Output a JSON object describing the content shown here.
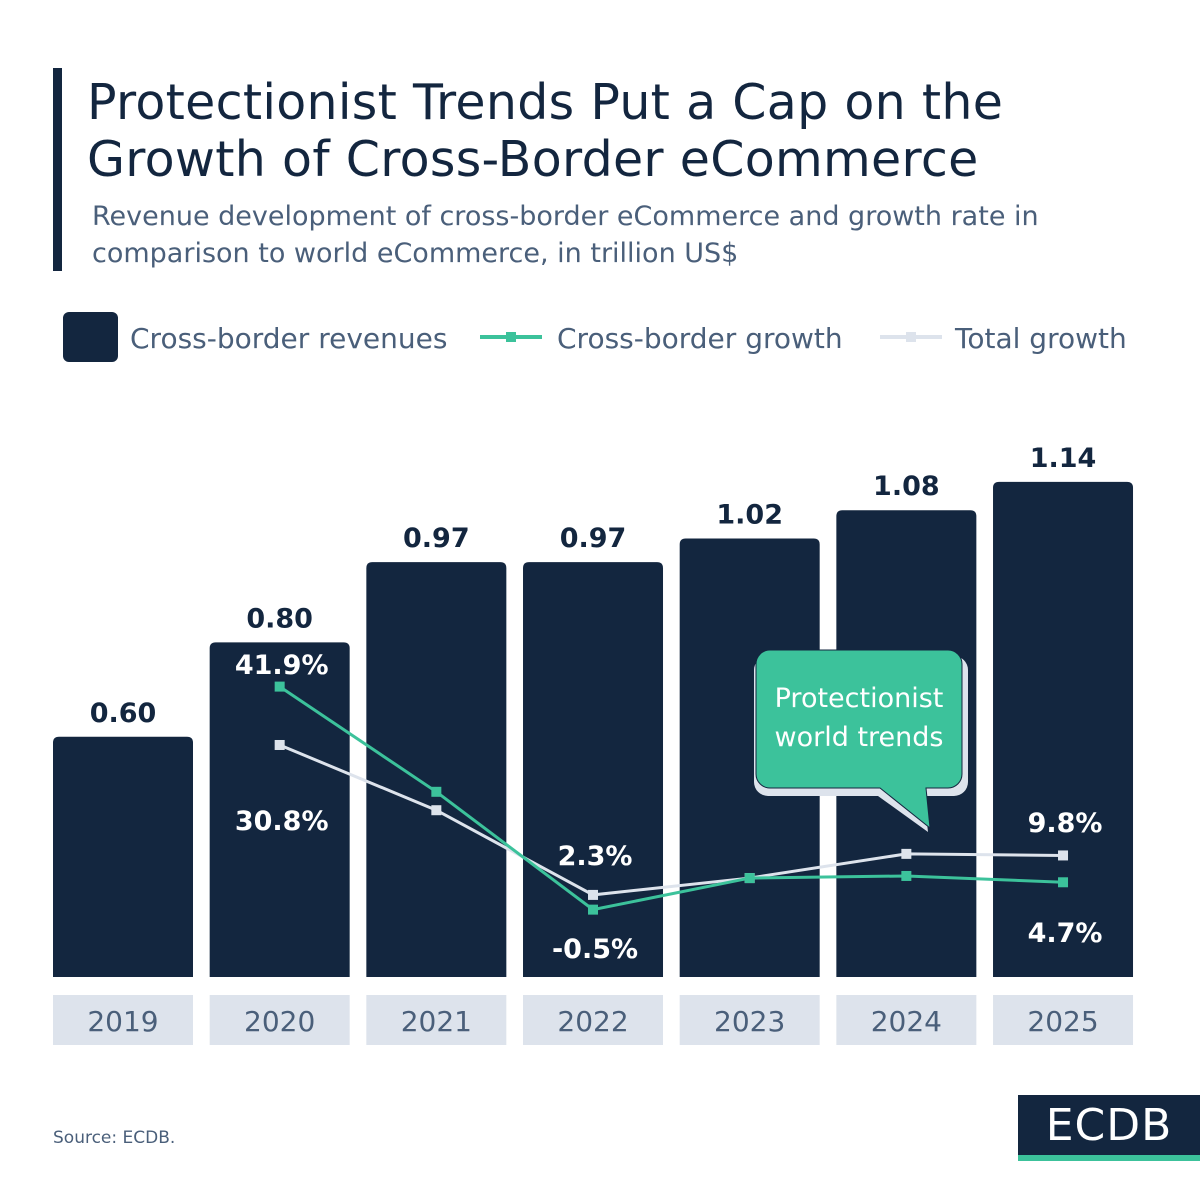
{
  "header": {
    "title": "Protectionist Trends Put a Cap on the Growth of Cross-Border eCommerce",
    "subtitle": "Revenue development of cross-border eCommerce and growth rate in comparison to world eCommerce, in trillion US$"
  },
  "colors": {
    "bar": "#13263f",
    "cross_border_growth": "#3cc29b",
    "total_growth": "#dde3ec",
    "category_bg": "#dde3ec",
    "callout": "#3cc29b"
  },
  "chart_data": {
    "type": "bar+line",
    "categories": [
      "2019",
      "2020",
      "2021",
      "2022",
      "2023",
      "2024",
      "2025"
    ],
    "legend_position": "top",
    "grid": false,
    "series": [
      {
        "name": "Cross-border revenues",
        "type": "bar",
        "unit": "trillion US$",
        "values": [
          0.6,
          0.8,
          0.97,
          0.97,
          1.02,
          1.08,
          1.14
        ],
        "labels": [
          "0.60",
          "0.80",
          "0.97",
          "0.97",
          "1.02",
          "1.08",
          "1.14"
        ]
      },
      {
        "name": "Cross-border growth",
        "type": "line",
        "unit": "%",
        "values": [
          null,
          41.9,
          21.9,
          -0.5,
          5.5,
          5.9,
          4.7
        ],
        "labels": [
          null,
          "41.9%",
          null,
          "-0.5%",
          null,
          null,
          "4.7%"
        ]
      },
      {
        "name": "Total growth",
        "type": "line",
        "unit": "%",
        "values": [
          null,
          30.8,
          18.4,
          2.3,
          5.5,
          10.1,
          9.8
        ],
        "labels": [
          null,
          "30.8%",
          null,
          "2.3%",
          null,
          null,
          "9.8%"
        ]
      }
    ],
    "annotation": "Protectionist world trends"
  },
  "footer": {
    "source": "Source: ECDB.",
    "logo": "ECDB"
  }
}
